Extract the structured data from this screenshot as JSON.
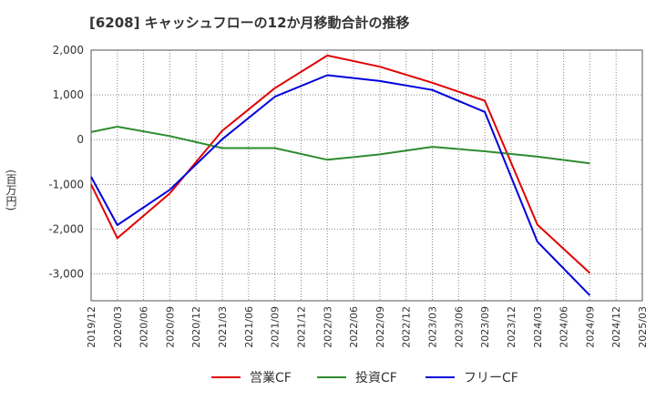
{
  "chart_data": {
    "type": "line",
    "title": "[6208]  キャッシュフローの12か月移動合計の推移",
    "ylabel": "(百万円)",
    "xlabel": "",
    "ylim": [
      -3600,
      2000
    ],
    "yticks": [
      2000,
      1000,
      0,
      -1000,
      -2000,
      -3000
    ],
    "ytick_labels": [
      "2,000",
      "1,000",
      "0",
      "-1,000",
      "-2,000",
      "-3,000"
    ],
    "categories": [
      "2019/12",
      "2020/03",
      "2020/06",
      "2020/09",
      "2020/12",
      "2021/03",
      "2021/06",
      "2021/09",
      "2021/12",
      "2022/03",
      "2022/06",
      "2022/09",
      "2022/12",
      "2023/03",
      "2023/06",
      "2023/09",
      "2023/12",
      "2024/03",
      "2024/06",
      "2024/09",
      "2024/12",
      "2025/03"
    ],
    "series": [
      {
        "name": "営業CF",
        "color": "#e00000",
        "values": [
          -1000,
          -2200,
          null,
          -1200,
          null,
          200,
          null,
          1150,
          null,
          1880,
          null,
          1630,
          null,
          1270,
          null,
          870,
          null,
          -1900,
          null,
          -2980,
          null,
          null
        ]
      },
      {
        "name": "投資CF",
        "color": "#2e8b2e",
        "values": [
          170,
          290,
          null,
          80,
          null,
          -190,
          null,
          -190,
          null,
          -450,
          null,
          -330,
          null,
          -160,
          null,
          -260,
          null,
          -380,
          null,
          -530,
          null,
          null
        ]
      },
      {
        "name": "フリーCF",
        "color": "#0000dd",
        "values": [
          -830,
          -1910,
          null,
          -1120,
          null,
          10,
          null,
          960,
          null,
          1440,
          null,
          1310,
          null,
          1110,
          null,
          620,
          null,
          -2280,
          null,
          -3480,
          null,
          null
        ]
      }
    ],
    "grid": true,
    "legend": "bottom"
  }
}
